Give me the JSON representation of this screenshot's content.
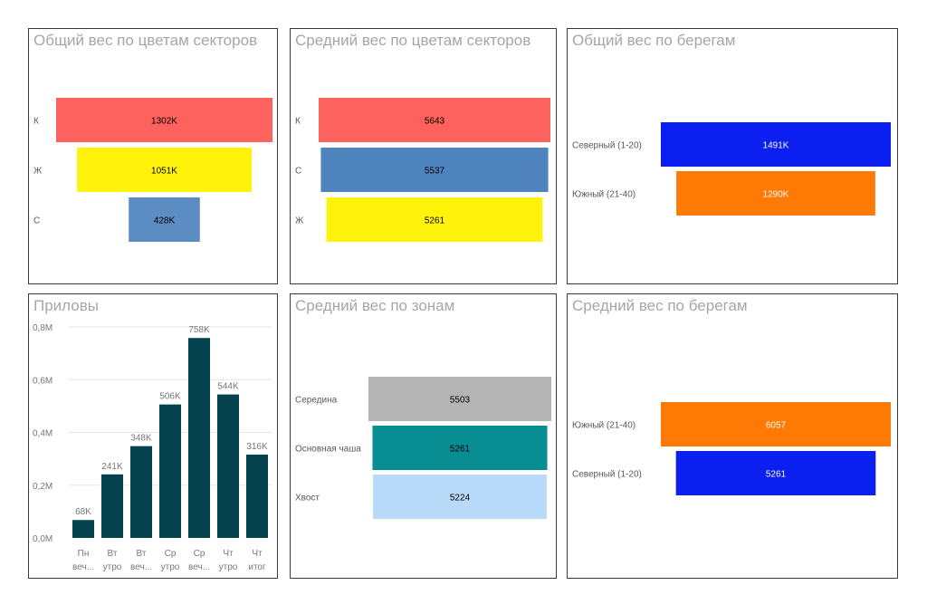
{
  "chart_data": [
    {
      "type": "bar",
      "orientation": "horizontal",
      "style": "funnel",
      "title": "Общий вес по цветам секторов",
      "categories": [
        "К",
        "Ж",
        "С"
      ],
      "values": [
        1302,
        1051,
        428
      ],
      "value_labels": [
        "1302K",
        "1051K",
        "428K"
      ],
      "colors": [
        "#fd625e",
        "#fff20b",
        "#5b8dc3"
      ],
      "label_colors": [
        "#000000",
        "#000000",
        "#000000"
      ]
    },
    {
      "type": "bar",
      "orientation": "horizontal",
      "style": "funnel",
      "title": "Средний вес по цветам секторов",
      "categories": [
        "К",
        "С",
        "Ж"
      ],
      "values": [
        5643,
        5537,
        5261
      ],
      "value_labels": [
        "5643",
        "5537",
        "5261"
      ],
      "colors": [
        "#fd625e",
        "#4f84be",
        "#fff20b"
      ],
      "label_colors": [
        "#000000",
        "#000000",
        "#000000"
      ]
    },
    {
      "type": "bar",
      "orientation": "horizontal",
      "style": "funnel",
      "title": "Общий вес по берегам",
      "categories": [
        "Северный (1-20)",
        "Южный (21-40)"
      ],
      "values": [
        1491,
        1290
      ],
      "value_labels": [
        "1491K",
        "1290K"
      ],
      "colors": [
        "#0b1ff0",
        "#ff7a05"
      ],
      "label_colors": [
        "#ffffff",
        "#ffffff"
      ]
    },
    {
      "type": "bar",
      "orientation": "vertical",
      "title": "Приловы",
      "categories": [
        [
          "Пн",
          "веч..."
        ],
        [
          "Вт",
          "утро"
        ],
        [
          "Вт",
          "веч..."
        ],
        [
          "Ср",
          "утро"
        ],
        [
          "Ср",
          "веч..."
        ],
        [
          "Чт",
          "утро"
        ],
        [
          "Чт",
          "итог"
        ]
      ],
      "values": [
        68,
        241,
        348,
        506,
        758,
        544,
        316
      ],
      "value_labels": [
        "68K",
        "241K",
        "348K",
        "506K",
        "758K",
        "544K",
        "316K"
      ],
      "ylim": [
        0,
        0.8
      ],
      "yticks": [
        "0,0M",
        "0,2M",
        "0,4M",
        "0,6M",
        "0,8M"
      ],
      "color": "#05424f",
      "grid": true
    },
    {
      "type": "bar",
      "orientation": "horizontal",
      "style": "funnel",
      "title": "Средний вес по зонам",
      "categories": [
        "Середина",
        "Основная чаша",
        "Хвост"
      ],
      "values": [
        5503,
        5261,
        5224
      ],
      "value_labels": [
        "5503",
        "5261",
        "5224"
      ],
      "colors": [
        "#b4b4b4",
        "#078d92",
        "#b7daf8"
      ],
      "label_colors": [
        "#000000",
        "#000000",
        "#000000"
      ]
    },
    {
      "type": "bar",
      "orientation": "horizontal",
      "style": "funnel",
      "title": "Средний вес по берегам",
      "categories": [
        "Южный (21-40)",
        "Северный (1-20)"
      ],
      "values": [
        6057,
        5261
      ],
      "value_labels": [
        "6057",
        "5261"
      ],
      "colors": [
        "#ff7a05",
        "#0b1ff0"
      ],
      "label_colors": [
        "#ffffff",
        "#ffffff"
      ]
    }
  ]
}
